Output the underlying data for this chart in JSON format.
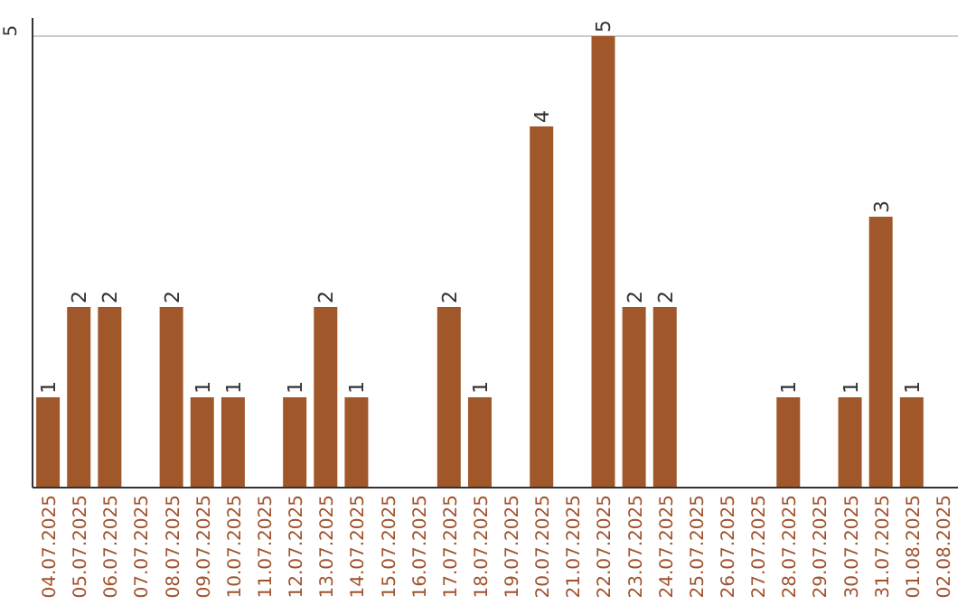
{
  "chart_data": {
    "type": "bar",
    "categories": [
      "04.07.2025",
      "05.07.2025",
      "06.07.2025",
      "07.07.2025",
      "08.07.2025",
      "09.07.2025",
      "10.07.2025",
      "11.07.2025",
      "12.07.2025",
      "13.07.2025",
      "14.07.2025",
      "15.07.2025",
      "16.07.2025",
      "17.07.2025",
      "18.07.2025",
      "19.07.2025",
      "20.07.2025",
      "21.07.2025",
      "22.07.2025",
      "23.07.2025",
      "24.07.2025",
      "25.07.2025",
      "26.07.2025",
      "27.07.2025",
      "28.07.2025",
      "29.07.2025",
      "30.07.2025",
      "31.07.2025",
      "01.08.2025",
      "02.08.2025"
    ],
    "values": [
      1,
      2,
      2,
      null,
      2,
      1,
      1,
      null,
      1,
      2,
      1,
      null,
      null,
      2,
      1,
      null,
      4,
      null,
      5,
      2,
      2,
      null,
      null,
      null,
      1,
      null,
      1,
      3,
      1,
      null
    ],
    "color": "#a0572a",
    "ylim": [
      0,
      5.2
    ],
    "yticks": [
      5
    ],
    "grid": "y",
    "data_labels": true
  }
}
